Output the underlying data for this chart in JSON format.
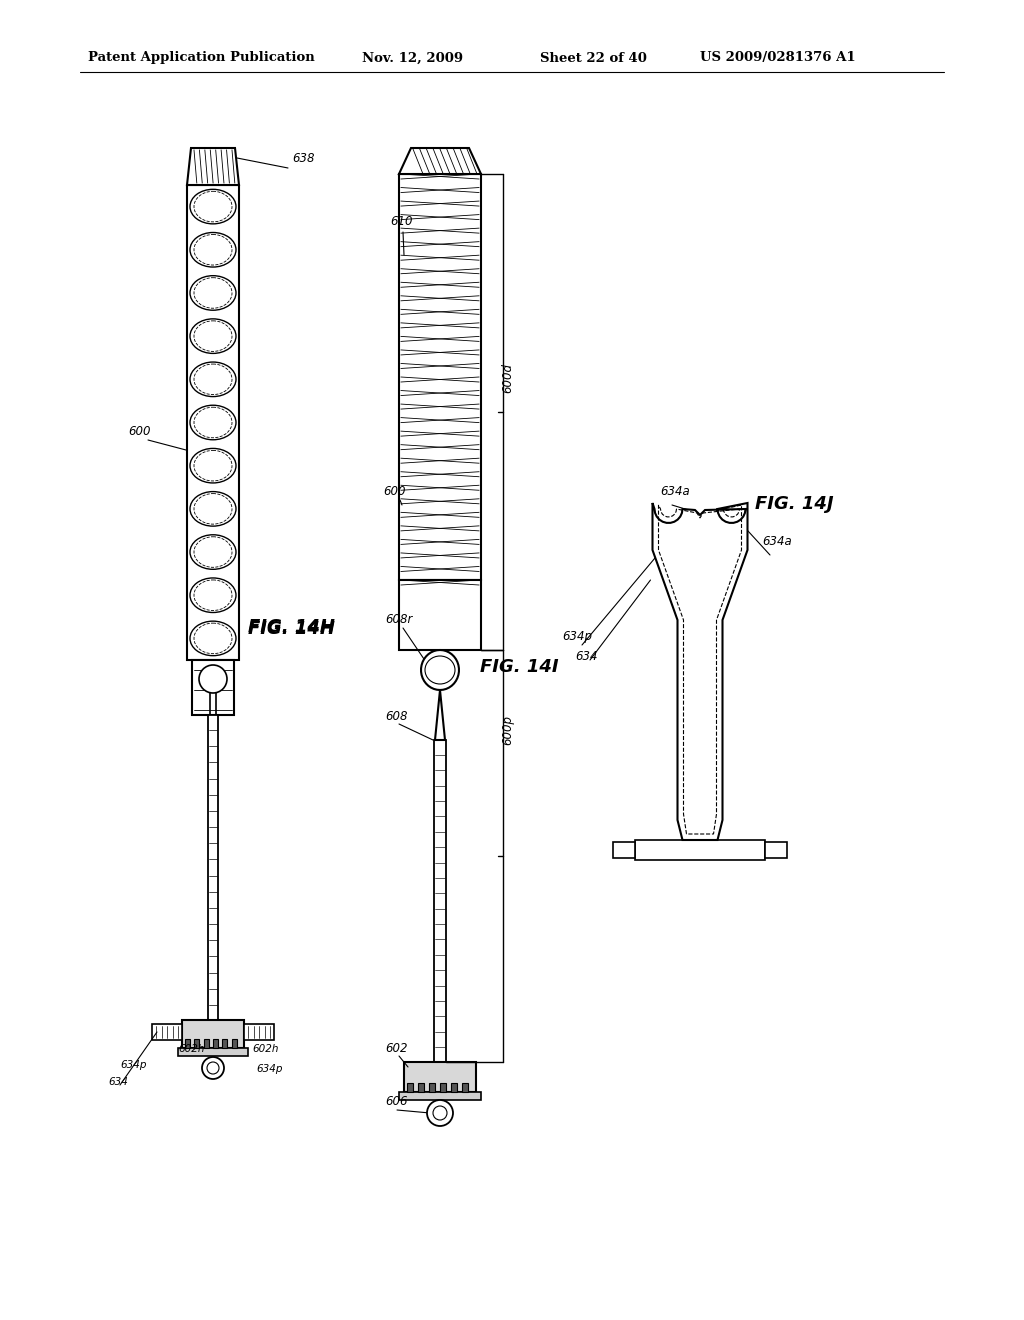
{
  "background_color": "#ffffff",
  "header_text": "Patent Application Publication",
  "header_date": "Nov. 12, 2009",
  "header_sheet": "Sheet 22 of 40",
  "header_patent": "US 2009/0281376 A1",
  "fig_14h_label": "FIG. 14H",
  "fig_14i_label": "FIG. 14I",
  "fig_14j_label": "FIG. 14J"
}
